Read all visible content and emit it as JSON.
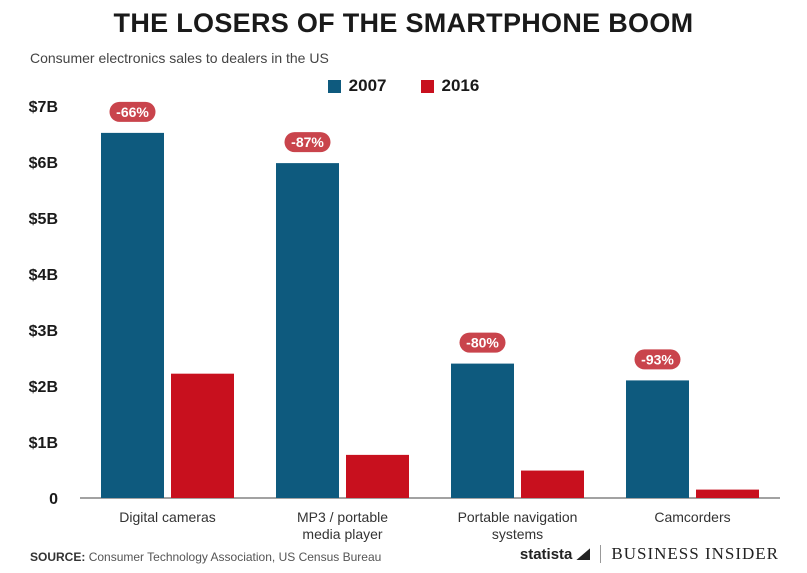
{
  "title": "THE LOSERS OF THE SMARTPHONE BOOM",
  "subtitle": "Consumer electronics sales to dealers in the US",
  "source_label": "SOURCE:",
  "source_text": "Consumer Technology Association, US Census Bureau",
  "brand": {
    "statista": "statista",
    "business_insider": "BUSINESS INSIDER"
  },
  "colors": {
    "series_2007": "#0e5a7e",
    "series_2016": "#c8101e",
    "badge": "#c9444c",
    "axis": "#444444"
  },
  "chart_data": {
    "type": "bar",
    "categories": [
      [
        "Digital cameras"
      ],
      [
        "MP3 / portable",
        "media player"
      ],
      [
        "Portable navigation",
        "systems"
      ],
      [
        "Camcorders"
      ]
    ],
    "series": [
      {
        "name": "2007",
        "values": [
          6.52,
          5.98,
          2.4,
          2.1
        ]
      },
      {
        "name": "2016",
        "values": [
          2.22,
          0.77,
          0.49,
          0.15
        ]
      }
    ],
    "annotations": [
      "-66%",
      "-87%",
      "-80%",
      "-93%"
    ],
    "y_ticks": [
      {
        "value": 0,
        "label": "0"
      },
      {
        "value": 1,
        "label": "$1B"
      },
      {
        "value": 2,
        "label": "$2B"
      },
      {
        "value": 3,
        "label": "$3B"
      },
      {
        "value": 4,
        "label": "$4B"
      },
      {
        "value": 5,
        "label": "$5B"
      },
      {
        "value": 6,
        "label": "$6B"
      },
      {
        "value": 7,
        "label": "$7B"
      }
    ],
    "ylim": [
      0,
      7
    ],
    "grid": false,
    "legend_position": "top-center"
  }
}
